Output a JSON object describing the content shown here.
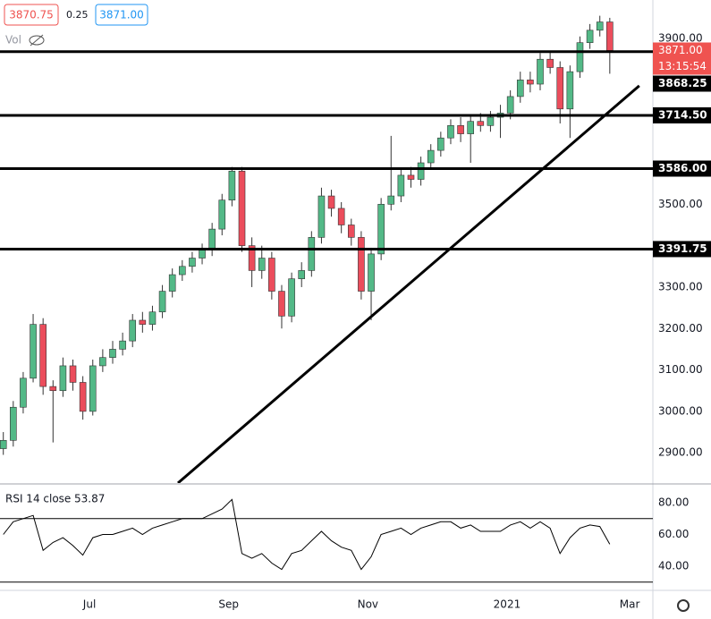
{
  "header": {
    "bid": "3870.75",
    "spread": "0.25",
    "ask": "3871.00",
    "volume": "Vol"
  },
  "chart_data": [
    {
      "type": "candlestick",
      "x": [
        1,
        4,
        7,
        10,
        13,
        16,
        19,
        22,
        25,
        28,
        31,
        34,
        37,
        40,
        43,
        46,
        49,
        52,
        55,
        58,
        61,
        64,
        67,
        70,
        73,
        76,
        79,
        82,
        85,
        88,
        91,
        94,
        97,
        100,
        103,
        106,
        109,
        112,
        115,
        118,
        121,
        124,
        127,
        130,
        133,
        136,
        139,
        142,
        145,
        148,
        151,
        154,
        157,
        160,
        163,
        166,
        169,
        172,
        175,
        178,
        181,
        184
      ],
      "open": [
        2910,
        2930,
        3010,
        3080,
        3210,
        3060,
        3050,
        3110,
        3070,
        3000,
        3110,
        3130,
        3150,
        3170,
        3220,
        3210,
        3240,
        3290,
        3330,
        3350,
        3370,
        3390,
        3440,
        3510,
        3580,
        3400,
        3340,
        3370,
        3290,
        3230,
        3320,
        3340,
        3420,
        3520,
        3490,
        3450,
        3420,
        3290,
        3380,
        3500,
        3520,
        3570,
        3560,
        3600,
        3630,
        3660,
        3690,
        3670,
        3700,
        3690,
        3710,
        3720,
        3760,
        3800,
        3790,
        3850,
        3830,
        3730,
        3820,
        3890,
        3920,
        3940
      ],
      "high": [
        2950,
        3025,
        3095,
        3235,
        3225,
        3075,
        3130,
        3125,
        3085,
        3125,
        3150,
        3170,
        3190,
        3235,
        3240,
        3255,
        3305,
        3345,
        3365,
        3385,
        3405,
        3455,
        3525,
        3590,
        3590,
        3420,
        3400,
        3385,
        3305,
        3335,
        3360,
        3435,
        3540,
        3535,
        3505,
        3465,
        3435,
        3395,
        3515,
        3665,
        3585,
        3590,
        3615,
        3645,
        3675,
        3705,
        3710,
        3715,
        3720,
        3725,
        3740,
        3775,
        3820,
        3820,
        3865,
        3870,
        3845,
        3835,
        3905,
        3935,
        3955,
        3950
      ],
      "low": [
        2895,
        2915,
        2995,
        3070,
        3040,
        2925,
        3035,
        3050,
        2980,
        2990,
        3095,
        3115,
        3135,
        3155,
        3190,
        3195,
        3225,
        3275,
        3315,
        3335,
        3355,
        3375,
        3425,
        3495,
        3385,
        3300,
        3320,
        3270,
        3200,
        3215,
        3300,
        3325,
        3405,
        3470,
        3430,
        3400,
        3270,
        3220,
        3365,
        3485,
        3505,
        3540,
        3545,
        3585,
        3615,
        3645,
        3650,
        3600,
        3675,
        3675,
        3660,
        3705,
        3745,
        3770,
        3775,
        3815,
        3695,
        3660,
        3805,
        3875,
        3905,
        3815
      ],
      "close": [
        2930,
        3010,
        3080,
        3210,
        3060,
        3050,
        3110,
        3070,
        3000,
        3110,
        3130,
        3150,
        3170,
        3220,
        3210,
        3240,
        3290,
        3330,
        3350,
        3370,
        3390,
        3440,
        3510,
        3580,
        3400,
        3340,
        3370,
        3290,
        3230,
        3320,
        3340,
        3420,
        3520,
        3490,
        3450,
        3420,
        3290,
        3380,
        3500,
        3520,
        3570,
        3560,
        3600,
        3630,
        3660,
        3690,
        3670,
        3700,
        3690,
        3710,
        3720,
        3760,
        3800,
        3790,
        3850,
        3830,
        3730,
        3820,
        3890,
        3920,
        3940,
        3871
      ],
      "up_color": "#53b987",
      "down_color": "#eb4d5c",
      "xlim": [
        0,
        197
      ],
      "ylim": [
        2827,
        3993
      ],
      "xticks": [
        {
          "value": 27,
          "label": "Jul"
        },
        {
          "value": 69,
          "label": "Sep"
        },
        {
          "value": 111,
          "label": "Nov"
        },
        {
          "value": 153,
          "label": "2021"
        },
        {
          "value": 190,
          "label": "Mar"
        }
      ],
      "yticks": [
        {
          "value": 2900,
          "label": "2900.00"
        },
        {
          "value": 3000,
          "label": "3000.00"
        },
        {
          "value": 3100,
          "label": "3100.00"
        },
        {
          "value": 3200,
          "label": "3200.00"
        },
        {
          "value": 3300,
          "label": "3300.00"
        },
        {
          "value": 3500,
          "label": "3500.00"
        },
        {
          "value": 3900,
          "label": "3900.00"
        }
      ],
      "hlines": [
        {
          "value": 3868.25,
          "label": "3868.25"
        },
        {
          "value": 3714.5,
          "label": "3714.50"
        },
        {
          "value": 3586,
          "label": "3586.00"
        },
        {
          "value": 3391.75,
          "label": "3391.75"
        }
      ],
      "trendline": {
        "x": [
          53.7,
          192.9
        ],
        "y": [
          2827,
          3786
        ]
      },
      "last_price": {
        "value": 3871,
        "label": "3871.00"
      },
      "countdown": "13:15:54"
    },
    {
      "type": "line",
      "title": "RSI 14 close",
      "color": "#000000",
      "x": [
        1,
        4,
        7,
        10,
        13,
        16,
        19,
        22,
        25,
        28,
        31,
        34,
        37,
        40,
        43,
        46,
        49,
        52,
        55,
        58,
        61,
        64,
        67,
        70,
        73,
        76,
        79,
        82,
        85,
        88,
        91,
        94,
        97,
        100,
        103,
        106,
        109,
        112,
        115,
        118,
        121,
        124,
        127,
        130,
        133,
        136,
        139,
        142,
        145,
        148,
        151,
        154,
        157,
        160,
        163,
        166,
        169,
        172,
        175,
        178,
        181,
        184
      ],
      "values": [
        60,
        68,
        70,
        72,
        50,
        55,
        58,
        53,
        47,
        58,
        60,
        60,
        62,
        64,
        60,
        64,
        66,
        68,
        70,
        70,
        70,
        73,
        76,
        82,
        48,
        45,
        48,
        42,
        38,
        48,
        50,
        56,
        62,
        56,
        52,
        50,
        38,
        46,
        60,
        62,
        64,
        60,
        64,
        66,
        68,
        68,
        64,
        66,
        62,
        62,
        62,
        66,
        68,
        64,
        68,
        64,
        48,
        58,
        64,
        66,
        65,
        53.87
      ],
      "xlim": [
        0,
        197
      ],
      "ylim": [
        24.8,
        90.7
      ],
      "yticks": [
        {
          "value": 40,
          "label": "40.00"
        },
        {
          "value": 60,
          "label": "60.00"
        },
        {
          "value": 80,
          "label": "80.00"
        }
      ],
      "bands": [
        70,
        30
      ]
    }
  ]
}
